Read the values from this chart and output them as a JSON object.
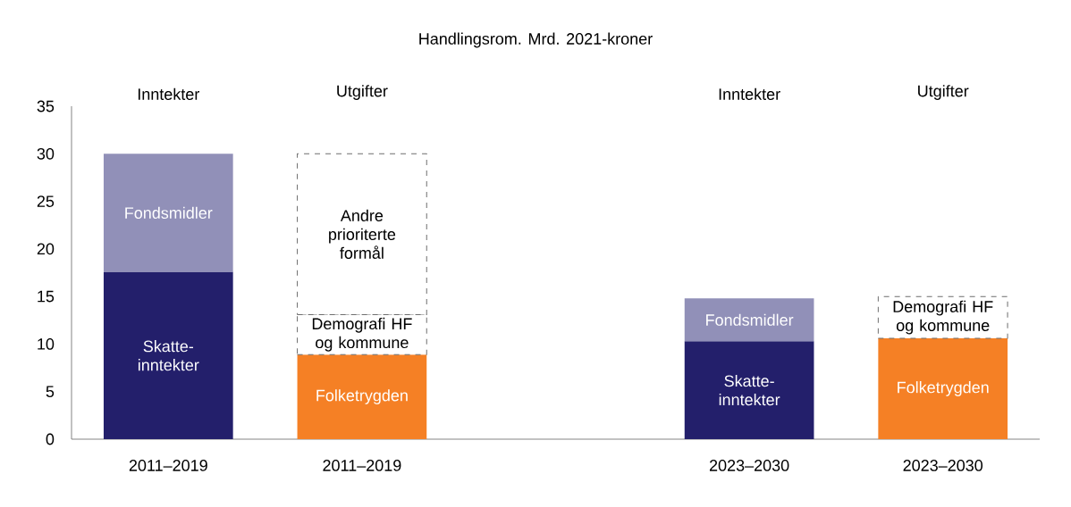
{
  "chart_data": {
    "type": "bar",
    "title": "Handlingsrom. Mrd. 2021-kroner",
    "stacked": true,
    "categories": [
      "2011–2019",
      "2011–2019",
      null,
      "2023–2030",
      "2023–2030"
    ],
    "annotations": [
      "Inntekter",
      "Utgifter",
      "Inntekter",
      "Utgifter"
    ],
    "series": [
      {
        "name": "Skatte-inntekter",
        "color": "#231f6b",
        "values": [
          17.6,
          null,
          null,
          10.3,
          null
        ]
      },
      {
        "name": "Fondsmidler",
        "color": "#9190b8",
        "values": [
          12.4,
          null,
          null,
          4.5,
          null
        ]
      },
      {
        "name": "Folketrygden",
        "color": "#f58025",
        "values": [
          null,
          8.9,
          null,
          null,
          10.6
        ]
      },
      {
        "name": "Demografi HF og kommune",
        "color": "#ffffff",
        "line_style": "dashed",
        "values": [
          null,
          4.2,
          null,
          null,
          4.4
        ]
      },
      {
        "name": "Andre prioriterte formål",
        "color": "#ffffff",
        "line_style": "dashed",
        "values": [
          null,
          16.9,
          null,
          null,
          null
        ]
      }
    ],
    "ylim": [
      0,
      35
    ],
    "yticks": [
      0,
      5,
      10,
      15,
      20,
      25,
      30,
      35
    ]
  }
}
